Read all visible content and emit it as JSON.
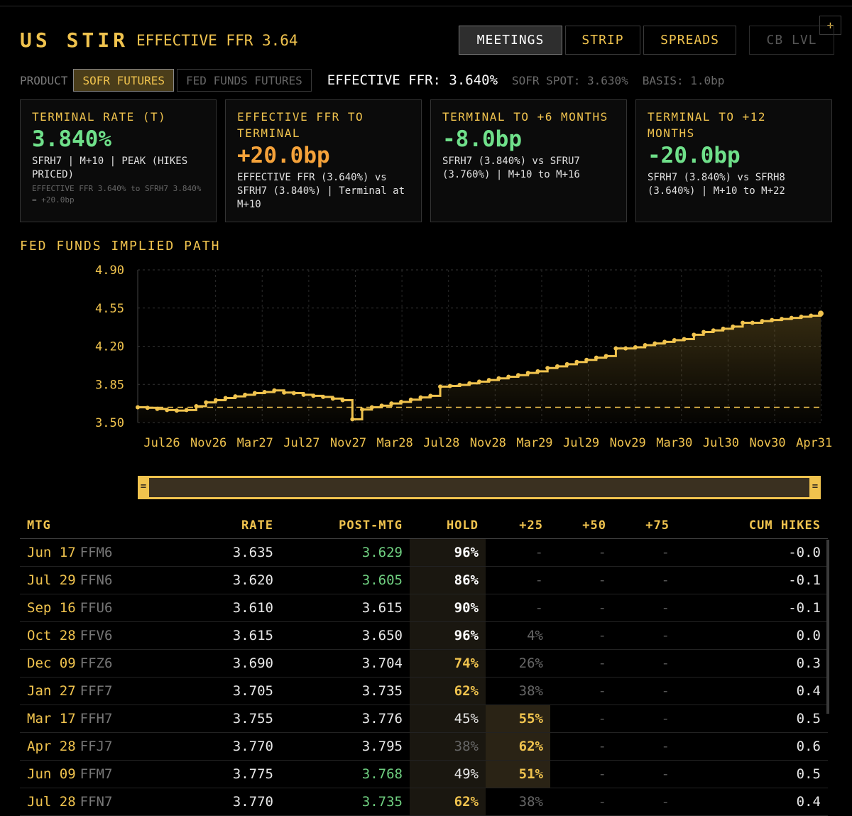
{
  "header": {
    "title": "US STIR",
    "subtitle": "EFFECTIVE FFR 3.64",
    "plus_label": "+",
    "tabs": [
      "MEETINGS",
      "STRIP",
      "SPREADS",
      "CB LVL"
    ]
  },
  "product": {
    "label": "PRODUCT",
    "options": [
      "SOFR FUTURES",
      "FED FUNDS FUTURES"
    ],
    "selected": "SOFR FUTURES",
    "effective_ffr": "EFFECTIVE FFR: 3.640%",
    "sofr_spot": "SOFR SPOT: 3.630%",
    "basis": "BASIS: 1.0bp"
  },
  "cards": [
    {
      "title": "TERMINAL RATE (T)",
      "value": "3.840%",
      "sub": "SFRH7 | M+10 | PEAK (HIKES PRICED)",
      "note": "EFFECTIVE FFR 3.640% to SFRH7 3.840% = +20.0bp",
      "tone": "#6fe08a"
    },
    {
      "title": "EFFECTIVE FFR TO TERMINAL",
      "value": "+20.0bp",
      "sub": "EFFECTIVE FFR (3.640%) vs SFRH7 (3.840%) | Terminal at M+10",
      "note": "",
      "tone": "#f5a23a"
    },
    {
      "title": "TERMINAL TO +6 MONTHS",
      "value": "-8.0bp",
      "sub": "SFRH7 (3.840%) vs SFRU7 (3.760%) | M+10 to M+16",
      "note": "",
      "tone": "#6fe08a"
    },
    {
      "title": "TERMINAL TO +12 MONTHS",
      "value": "-20.0bp",
      "sub": "SFRH7 (3.840%) vs SFRH8 (3.640%) | M+10 to M+22",
      "note": "",
      "tone": "#6fe08a"
    }
  ],
  "chart_title": "FED FUNDS IMPLIED PATH",
  "chart_data": {
    "type": "line",
    "ylim": [
      3.5,
      4.9
    ],
    "yticks": [
      "4.90",
      "4.55",
      "4.20",
      "3.85",
      "3.50"
    ],
    "xticks": [
      "Jul26",
      "Nov26",
      "Mar27",
      "Jul27",
      "Nov27",
      "Mar28",
      "Jul28",
      "Nov28",
      "Mar29",
      "Jul29",
      "Nov29",
      "Mar30",
      "Jul30",
      "Nov30",
      "Apr31"
    ],
    "reference_level": 3.64,
    "grid": true,
    "series": [
      {
        "values": [
          3.64,
          3.635,
          3.625,
          3.615,
          3.61,
          3.615,
          3.65,
          3.685,
          3.705,
          3.725,
          3.74,
          3.755,
          3.77,
          3.78,
          3.795,
          3.775,
          3.77,
          3.755,
          3.745,
          3.735,
          3.72,
          3.705,
          3.53,
          3.62,
          3.64,
          3.655,
          3.675,
          3.69,
          3.71,
          3.73,
          3.745,
          3.83,
          3.835,
          3.845,
          3.86,
          3.875,
          3.89,
          3.905,
          3.92,
          3.935,
          3.955,
          3.97,
          4.0,
          4.015,
          4.035,
          4.055,
          4.075,
          4.095,
          4.11,
          4.18,
          4.18,
          4.19,
          4.21,
          4.225,
          4.24,
          4.255,
          4.265,
          4.305,
          4.33,
          4.345,
          4.36,
          4.38,
          4.415,
          4.415,
          4.43,
          4.44,
          4.45,
          4.46,
          4.47,
          4.48,
          4.5
        ]
      }
    ]
  },
  "table": {
    "headers": [
      "MTG",
      "RATE",
      "POST-MTG",
      "HOLD",
      "+25",
      "+50",
      "+75",
      "CUM HIKES"
    ],
    "rows": [
      {
        "date": "Jun 17",
        "code": "FFM6",
        "rate": "3.635",
        "post": "3.629",
        "post_green": true,
        "hold": "96%",
        "hold_style": "white-bold",
        "p25": "-",
        "p25_style": "dash",
        "p50": "-",
        "p75": "-",
        "cum": "-0.0"
      },
      {
        "date": "Jul 29",
        "code": "FFN6",
        "rate": "3.620",
        "post": "3.605",
        "post_green": true,
        "hold": "86%",
        "hold_style": "white-bold",
        "p25": "-",
        "p25_style": "dash",
        "p50": "-",
        "p75": "-",
        "cum": "-0.1"
      },
      {
        "date": "Sep 16",
        "code": "FFU6",
        "rate": "3.610",
        "post": "3.615",
        "post_green": false,
        "hold": "90%",
        "hold_style": "white-bold",
        "p25": "-",
        "p25_style": "dash",
        "p50": "-",
        "p75": "-",
        "cum": "-0.1"
      },
      {
        "date": "Oct 28",
        "code": "FFV6",
        "rate": "3.615",
        "post": "3.650",
        "post_green": false,
        "hold": "96%",
        "hold_style": "white-bold",
        "p25": "4%",
        "p25_style": "dim",
        "p50": "-",
        "p75": "-",
        "cum": "0.0"
      },
      {
        "date": "Dec 09",
        "code": "FFZ6",
        "rate": "3.690",
        "post": "3.704",
        "post_green": false,
        "hold": "74%",
        "hold_style": "gold",
        "p25": "26%",
        "p25_style": "dim",
        "p50": "-",
        "p75": "-",
        "cum": "0.3"
      },
      {
        "date": "Jan 27",
        "code": "FFF7",
        "rate": "3.705",
        "post": "3.735",
        "post_green": false,
        "hold": "62%",
        "hold_style": "gold",
        "p25": "38%",
        "p25_style": "dim",
        "p50": "-",
        "p75": "-",
        "cum": "0.4"
      },
      {
        "date": "Mar 17",
        "code": "FFH7",
        "rate": "3.755",
        "post": "3.776",
        "post_green": false,
        "hold": "45%",
        "hold_style": "plain",
        "p25": "55%",
        "p25_style": "hi",
        "p50": "-",
        "p75": "-",
        "cum": "0.5"
      },
      {
        "date": "Apr 28",
        "code": "FFJ7",
        "rate": "3.770",
        "post": "3.795",
        "post_green": false,
        "hold": "38%",
        "hold_style": "dim",
        "p25": "62%",
        "p25_style": "hi",
        "p50": "-",
        "p75": "-",
        "cum": "0.6"
      },
      {
        "date": "Jun 09",
        "code": "FFM7",
        "rate": "3.775",
        "post": "3.768",
        "post_green": true,
        "hold": "49%",
        "hold_style": "plain",
        "p25": "51%",
        "p25_style": "hi",
        "p50": "-",
        "p75": "-",
        "cum": "0.5"
      },
      {
        "date": "Jul 28",
        "code": "FFN7",
        "rate": "3.770",
        "post": "3.735",
        "post_green": true,
        "hold": "62%",
        "hold_style": "gold",
        "p25": "38%",
        "p25_style": "dim",
        "p50": "-",
        "p75": "-",
        "cum": "0.4"
      }
    ]
  }
}
